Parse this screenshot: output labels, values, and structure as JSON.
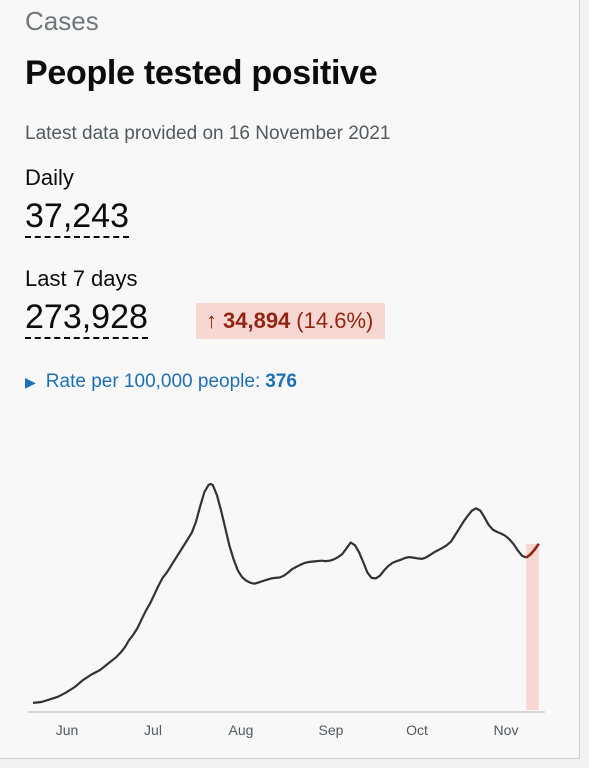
{
  "header": {
    "caption": "Cases",
    "title": "People tested positive",
    "latest_text": "Latest data provided on 16 November 2021"
  },
  "daily": {
    "label": "Daily",
    "value": "37,243"
  },
  "last7": {
    "label": "Last 7 days",
    "value": "273,928",
    "change": {
      "arrow": "↑",
      "amount": "34,894",
      "percent": "(14.6%)"
    }
  },
  "rate": {
    "label": "Rate per 100,000 people:",
    "value": "376"
  },
  "colors": {
    "line": "#333333",
    "highlight_line": "#942514",
    "highlight_fill": "#f6d7d2",
    "link": "#1d70b8"
  },
  "chart_data": {
    "type": "line",
    "title": "",
    "xlabel": "",
    "ylabel": "",
    "x_ticks": [
      "Jun",
      "Jul",
      "Aug",
      "Sep",
      "Oct",
      "Nov"
    ],
    "ylim": [
      0,
      50000
    ],
    "grid": false,
    "series": [
      {
        "values": [
          [
            0,
            1600
          ],
          [
            4,
            1800
          ],
          [
            8,
            2400
          ],
          [
            12,
            3000
          ],
          [
            16,
            4000
          ],
          [
            20,
            5200
          ],
          [
            24,
            6800
          ],
          [
            28,
            8000
          ],
          [
            32,
            9000
          ],
          [
            36,
            10500
          ],
          [
            40,
            12000
          ],
          [
            42,
            13000
          ],
          [
            44,
            14200
          ],
          [
            46,
            15800
          ],
          [
            48,
            17000
          ],
          [
            50,
            18500
          ],
          [
            52,
            20500
          ],
          [
            54,
            22400
          ],
          [
            56,
            24000
          ],
          [
            58,
            26000
          ],
          [
            60,
            28000
          ],
          [
            62,
            29800
          ],
          [
            64,
            31000
          ],
          [
            66,
            32500
          ],
          [
            68,
            34000
          ],
          [
            70,
            35500
          ],
          [
            72,
            37000
          ],
          [
            74,
            38500
          ],
          [
            76,
            40000
          ],
          [
            78,
            42500
          ],
          [
            80,
            46000
          ],
          [
            82,
            49200
          ],
          [
            84,
            50800
          ],
          [
            85,
            51000
          ],
          [
            86,
            50800
          ],
          [
            88,
            48500
          ],
          [
            90,
            45000
          ],
          [
            92,
            41000
          ],
          [
            94,
            37000
          ],
          [
            96,
            34000
          ],
          [
            98,
            31500
          ],
          [
            100,
            30000
          ],
          [
            102,
            29200
          ],
          [
            104,
            28700
          ],
          [
            106,
            28500
          ],
          [
            108,
            28800
          ],
          [
            110,
            29100
          ],
          [
            112,
            29400
          ],
          [
            114,
            29700
          ],
          [
            116,
            29800
          ],
          [
            118,
            29900
          ],
          [
            120,
            30300
          ],
          [
            122,
            31000
          ],
          [
            124,
            31800
          ],
          [
            126,
            32300
          ],
          [
            128,
            32800
          ],
          [
            130,
            33200
          ],
          [
            132,
            33400
          ],
          [
            134,
            33500
          ],
          [
            136,
            33600
          ],
          [
            138,
            33700
          ],
          [
            140,
            33600
          ],
          [
            142,
            33700
          ],
          [
            144,
            34000
          ],
          [
            146,
            34500
          ],
          [
            148,
            35200
          ],
          [
            150,
            36500
          ],
          [
            152,
            37800
          ],
          [
            154,
            37200
          ],
          [
            156,
            35600
          ],
          [
            158,
            33400
          ],
          [
            160,
            31000
          ],
          [
            162,
            29800
          ],
          [
            164,
            29700
          ],
          [
            166,
            30300
          ],
          [
            168,
            31500
          ],
          [
            170,
            32500
          ],
          [
            172,
            33200
          ],
          [
            174,
            33600
          ],
          [
            176,
            33900
          ],
          [
            178,
            34300
          ],
          [
            180,
            34500
          ],
          [
            182,
            34400
          ],
          [
            184,
            34200
          ],
          [
            186,
            34100
          ],
          [
            188,
            34400
          ],
          [
            190,
            35000
          ],
          [
            192,
            35600
          ],
          [
            194,
            36100
          ],
          [
            196,
            36600
          ],
          [
            198,
            37200
          ],
          [
            200,
            38000
          ],
          [
            202,
            39500
          ],
          [
            204,
            41000
          ],
          [
            206,
            42500
          ],
          [
            208,
            43800
          ],
          [
            210,
            45000
          ],
          [
            212,
            45500
          ],
          [
            214,
            45000
          ],
          [
            216,
            43500
          ],
          [
            218,
            41800
          ],
          [
            220,
            40700
          ],
          [
            222,
            40200
          ],
          [
            224,
            39800
          ],
          [
            226,
            39300
          ],
          [
            228,
            38500
          ],
          [
            230,
            37400
          ],
          [
            232,
            36000
          ],
          [
            234,
            34800
          ],
          [
            236,
            34400
          ],
          [
            238,
            35100
          ],
          [
            240,
            36200
          ],
          [
            242,
            37500
          ]
        ]
      }
    ]
  }
}
